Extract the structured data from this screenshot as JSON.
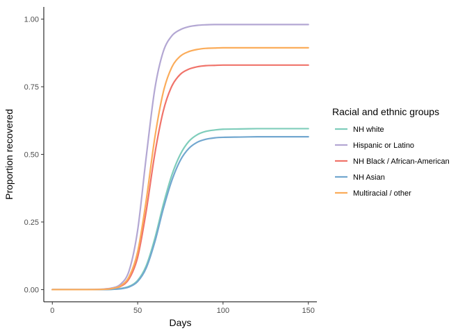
{
  "chart_data": {
    "type": "line",
    "xlabel": "Days",
    "ylabel": "Proportion recovered",
    "xlim": [
      -5,
      155
    ],
    "ylim": [
      -0.045,
      1.045
    ],
    "xticks": [
      0,
      50,
      100,
      150
    ],
    "xtick_labels": [
      "0",
      "50",
      "100",
      "150"
    ],
    "yticks": [
      0,
      0.25,
      0.5,
      0.75,
      1.0
    ],
    "ytick_labels": [
      "0.00",
      "0.25",
      "0.50",
      "0.75",
      "1.00"
    ],
    "grid": false,
    "legend": {
      "title": "Racial and ethnic groups",
      "position": "right"
    },
    "x": [
      0,
      10,
      20,
      30,
      35,
      40,
      45,
      50,
      55,
      60,
      65,
      70,
      75,
      80,
      85,
      90,
      95,
      100,
      110,
      120,
      130,
      140,
      150
    ],
    "series": [
      {
        "name": "NH white",
        "color": "#7fcdbb",
        "values": [
          0.0,
          0.0,
          0.0,
          0.0,
          0.001,
          0.004,
          0.012,
          0.034,
          0.088,
          0.188,
          0.314,
          0.423,
          0.5,
          0.548,
          0.573,
          0.585,
          0.59,
          0.593,
          0.594,
          0.595,
          0.595,
          0.595,
          0.595
        ]
      },
      {
        "name": "Hispanic or Latino",
        "color": "#b3a7d3",
        "values": [
          0.0,
          0.0,
          0.0,
          0.002,
          0.006,
          0.02,
          0.07,
          0.22,
          0.49,
          0.74,
          0.88,
          0.938,
          0.961,
          0.972,
          0.977,
          0.979,
          0.98,
          0.98,
          0.98,
          0.98,
          0.98,
          0.98,
          0.98
        ]
      },
      {
        "name": "NH Black / African-American",
        "color": "#f0736a",
        "values": [
          0.0,
          0.0,
          0.0,
          0.001,
          0.004,
          0.012,
          0.04,
          0.12,
          0.29,
          0.5,
          0.66,
          0.752,
          0.796,
          0.815,
          0.824,
          0.828,
          0.829,
          0.83,
          0.83,
          0.83,
          0.83,
          0.83,
          0.83
        ]
      },
      {
        "name": "NH Asian",
        "color": "#72a7cf",
        "values": [
          0.0,
          0.0,
          0.0,
          0.0,
          0.001,
          0.003,
          0.01,
          0.03,
          0.08,
          0.175,
          0.298,
          0.403,
          0.478,
          0.522,
          0.545,
          0.556,
          0.561,
          0.563,
          0.564,
          0.565,
          0.565,
          0.565,
          0.565
        ]
      },
      {
        "name": "Multiracial / other",
        "color": "#fbac5a",
        "values": [
          0.0,
          0.0,
          0.0,
          0.001,
          0.004,
          0.014,
          0.048,
          0.14,
          0.33,
          0.56,
          0.73,
          0.822,
          0.863,
          0.88,
          0.888,
          0.892,
          0.893,
          0.894,
          0.894,
          0.894,
          0.894,
          0.894,
          0.894
        ]
      }
    ]
  }
}
